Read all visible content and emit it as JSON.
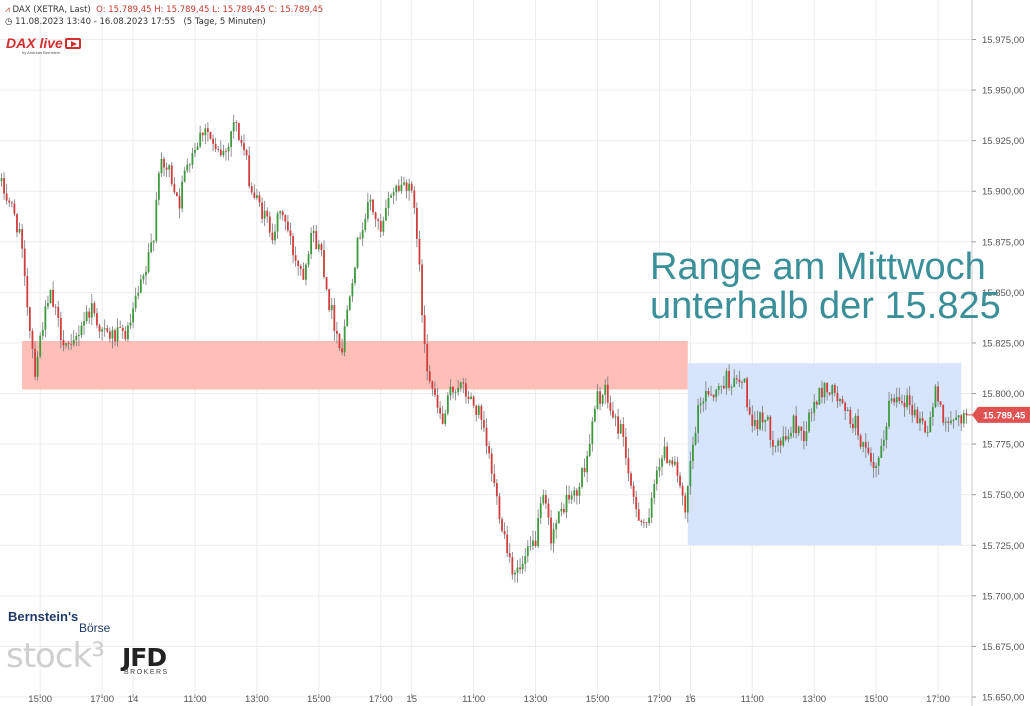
{
  "header": {
    "symbol": "DAX (XETRA, Last)",
    "ohlc": "O: 15.789,45   H: 15.789,45   L: 15.789,45   C: 15.789,45",
    "period": "11.08.2023 13:40 - 16.08.2023 17:55",
    "interval": "(5 Tage, 5 Minuten)"
  },
  "logos": {
    "dax_live": "DAX live",
    "dax_live_sub": "by Andreas Bernstein",
    "bernstein": "Bernstein's",
    "boerse": "Börse",
    "stock3": "stock³",
    "jfd": "JFD",
    "brokers": "BROKERS"
  },
  "colors": {
    "up": "#3c9a3c",
    "down": "#d23c3c",
    "resistance_zone": "#ffbcb5",
    "range_box": "#d4e4fb",
    "annotation": "#3a8f99",
    "price_tag": "#e05252"
  },
  "chart_data": {
    "type": "candlestick",
    "title": "",
    "ylim": [
      15650,
      15990
    ],
    "y_ticks": [
      15650,
      15675,
      15700,
      15725,
      15750,
      15775,
      15800,
      15825,
      15850,
      15875,
      15900,
      15925,
      15950,
      15975
    ],
    "y_tick_labels": [
      "15.650,00",
      "15.675,00",
      "15.700,00",
      "15.725,00",
      "15.750,00",
      "15.775,00",
      "15.800,00",
      "15.825,00",
      "15.850,00",
      "15.875,00",
      "15.900,00",
      "15.925,00",
      "15.950,00",
      "15.975,00"
    ],
    "x_ticks": [
      {
        "bar": 15,
        "label": "15:00"
      },
      {
        "bar": 39,
        "label": "17:00"
      },
      {
        "bar": 51,
        "label": "14"
      },
      {
        "bar": 75,
        "label": "11:00"
      },
      {
        "bar": 99,
        "label": "13:00"
      },
      {
        "bar": 123,
        "label": "15:00"
      },
      {
        "bar": 147,
        "label": "17:00"
      },
      {
        "bar": 159,
        "label": "15"
      },
      {
        "bar": 183,
        "label": "11:00"
      },
      {
        "bar": 207,
        "label": "13:00"
      },
      {
        "bar": 231,
        "label": "15:00"
      },
      {
        "bar": 255,
        "label": "17:00"
      },
      {
        "bar": 267,
        "label": "16"
      },
      {
        "bar": 291,
        "label": "11:00"
      },
      {
        "bar": 315,
        "label": "13:00"
      },
      {
        "bar": 339,
        "label": "15:00"
      },
      {
        "bar": 363,
        "label": "17:00"
      }
    ],
    "bar_count": 375,
    "anchors": [
      [
        0,
        15905
      ],
      [
        4,
        15895
      ],
      [
        8,
        15880
      ],
      [
        10,
        15855
      ],
      [
        14,
        15812
      ],
      [
        17,
        15835
      ],
      [
        20,
        15848
      ],
      [
        24,
        15830
      ],
      [
        28,
        15820
      ],
      [
        32,
        15835
      ],
      [
        36,
        15843
      ],
      [
        40,
        15830
      ],
      [
        45,
        15828
      ],
      [
        50,
        15830
      ],
      [
        53,
        15845
      ],
      [
        57,
        15860
      ],
      [
        60,
        15880
      ],
      [
        62,
        15912
      ],
      [
        66,
        15910
      ],
      [
        70,
        15895
      ],
      [
        73,
        15915
      ],
      [
        77,
        15925
      ],
      [
        80,
        15933
      ],
      [
        84,
        15918
      ],
      [
        88,
        15920
      ],
      [
        91,
        15935
      ],
      [
        95,
        15920
      ],
      [
        98,
        15900
      ],
      [
        102,
        15890
      ],
      [
        106,
        15880
      ],
      [
        110,
        15890
      ],
      [
        114,
        15870
      ],
      [
        118,
        15860
      ],
      [
        121,
        15880
      ],
      [
        125,
        15870
      ],
      [
        128,
        15845
      ],
      [
        131,
        15830
      ],
      [
        133,
        15822
      ],
      [
        136,
        15852
      ],
      [
        140,
        15880
      ],
      [
        144,
        15895
      ],
      [
        148,
        15878
      ],
      [
        152,
        15900
      ],
      [
        156,
        15903
      ],
      [
        159,
        15905
      ],
      [
        162,
        15880
      ],
      [
        164,
        15840
      ],
      [
        166,
        15815
      ],
      [
        169,
        15796
      ],
      [
        172,
        15785
      ],
      [
        175,
        15800
      ],
      [
        178,
        15805
      ],
      [
        182,
        15798
      ],
      [
        186,
        15790
      ],
      [
        190,
        15768
      ],
      [
        193,
        15748
      ],
      [
        196,
        15730
      ],
      [
        199,
        15714
      ],
      [
        202,
        15712
      ],
      [
        205,
        15720
      ],
      [
        208,
        15728
      ],
      [
        211,
        15748
      ],
      [
        214,
        15730
      ],
      [
        217,
        15738
      ],
      [
        220,
        15748
      ],
      [
        224,
        15750
      ],
      [
        228,
        15770
      ],
      [
        232,
        15798
      ],
      [
        235,
        15800
      ],
      [
        238,
        15788
      ],
      [
        242,
        15780
      ],
      [
        245,
        15750
      ],
      [
        249,
        15738
      ],
      [
        252,
        15735
      ],
      [
        255,
        15765
      ],
      [
        258,
        15770
      ],
      [
        260,
        15768
      ],
      [
        262,
        15768
      ],
      [
        266,
        15738
      ],
      [
        268,
        15765
      ],
      [
        271,
        15790
      ],
      [
        274,
        15802
      ],
      [
        278,
        15800
      ],
      [
        282,
        15808
      ],
      [
        285,
        15805
      ],
      [
        289,
        15805
      ],
      [
        292,
        15780
      ],
      [
        296,
        15790
      ],
      [
        300,
        15778
      ],
      [
        304,
        15775
      ],
      [
        308,
        15785
      ],
      [
        312,
        15780
      ],
      [
        316,
        15795
      ],
      [
        320,
        15803
      ],
      [
        324,
        15800
      ],
      [
        328,
        15790
      ],
      [
        332,
        15785
      ],
      [
        336,
        15770
      ],
      [
        339,
        15760
      ],
      [
        342,
        15770
      ],
      [
        345,
        15795
      ],
      [
        349,
        15800
      ],
      [
        353,
        15795
      ],
      [
        356,
        15788
      ],
      [
        360,
        15782
      ],
      [
        363,
        15800
      ],
      [
        366,
        15790
      ],
      [
        369,
        15783
      ],
      [
        372,
        15789
      ],
      [
        374,
        15789
      ]
    ],
    "last_price": 15789.45,
    "last_price_label": "15.789,45",
    "zones": [
      {
        "type": "resistance",
        "y_range": [
          15802,
          15826
        ],
        "bar_range": [
          8,
          266
        ]
      },
      {
        "type": "range",
        "y_range": [
          15725,
          15815
        ],
        "bar_range": [
          266,
          372
        ]
      }
    ],
    "annotation": [
      "Range am Mittwoch",
      "unterhalb der 15.825"
    ]
  }
}
